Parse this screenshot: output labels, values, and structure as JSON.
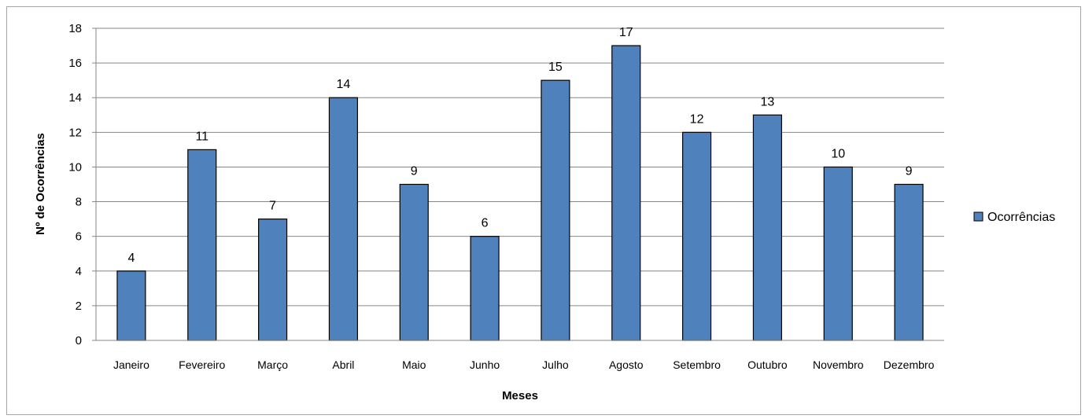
{
  "chart_data": {
    "type": "bar",
    "categories": [
      "Janeiro",
      "Fevereiro",
      "Março",
      "Abril",
      "Maio",
      "Junho",
      "Julho",
      "Agosto",
      "Setembro",
      "Outubro",
      "Novembro",
      "Dezembro"
    ],
    "series": [
      {
        "name": "Ocorrências",
        "values": [
          4,
          11,
          7,
          14,
          9,
          6,
          15,
          17,
          12,
          13,
          10,
          9
        ],
        "color": "#4f81bd"
      }
    ],
    "xlabel": "Meses",
    "ylabel": "Nº de Ocorrências",
    "ylim": [
      0,
      18
    ],
    "yticks": [
      "0",
      "2",
      "4",
      "6",
      "8",
      "10",
      "12",
      "14",
      "16",
      "18"
    ],
    "grid": true,
    "data_labels": true,
    "legend_position": "right"
  }
}
